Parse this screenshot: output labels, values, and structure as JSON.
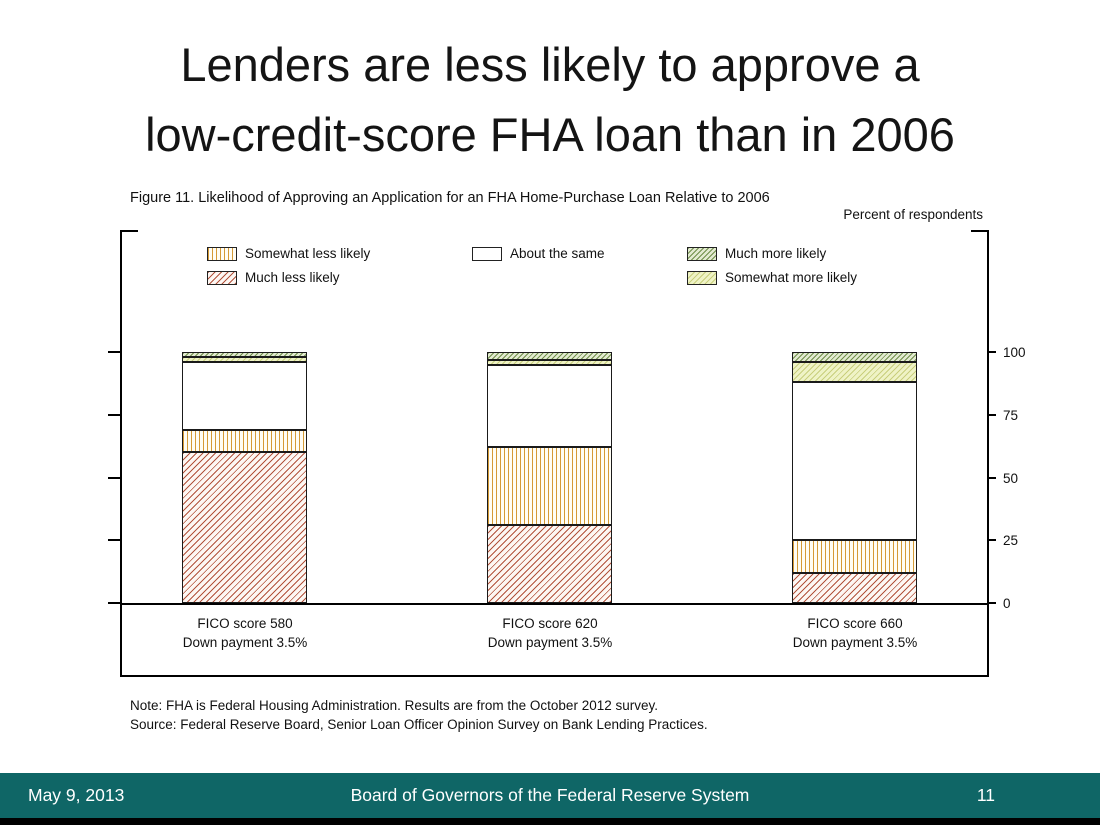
{
  "slide": {
    "title_line1": "Lenders are less likely to approve a",
    "title_line2": "low-credit-score FHA loan than in 2006"
  },
  "figure": {
    "title": "Figure 11. Likelihood of Approving an Application for an FHA Home-Purchase Loan Relative to 2006",
    "unit_label": "Percent of respondents"
  },
  "chart_data": {
    "type": "bar",
    "stacked": true,
    "title": "Figure 11. Likelihood of Approving an Application for an FHA Home-Purchase Loan Relative to 2006",
    "ylabel": "Percent of respondents",
    "ylim": [
      0,
      100
    ],
    "yticks": [
      0,
      25,
      50,
      75,
      100
    ],
    "grid": false,
    "legend_position": "top-inside",
    "categories": [
      {
        "line1": "FICO score 580",
        "line2": "Down payment 3.5%"
      },
      {
        "line1": "FICO score 620",
        "line2": "Down payment 3.5%"
      },
      {
        "line1": "FICO score 660",
        "line2": "Down payment 3.5%"
      }
    ],
    "series": [
      {
        "key": "much_less",
        "name": "Much less likely",
        "pattern": "red-diagonal-hatch",
        "color": "#b2533c",
        "values": [
          60,
          31,
          12
        ]
      },
      {
        "key": "somewhat_less",
        "name": "Somewhat less likely",
        "pattern": "orange-vertical-hatch",
        "color": "#d59a35",
        "values": [
          9,
          31,
          13
        ]
      },
      {
        "key": "about_same",
        "name": "About the same",
        "pattern": "plain-white",
        "color": "#ffffff",
        "values": [
          27,
          33,
          63
        ]
      },
      {
        "key": "somewhat_more",
        "name": "Somewhat more likely",
        "pattern": "yellowgreen-hatch",
        "color": "#c9cf7d",
        "values": [
          2,
          2,
          8
        ]
      },
      {
        "key": "much_more",
        "name": "Much more likely",
        "pattern": "green-diagonal-hatch",
        "color": "#70904a",
        "values": [
          2,
          3,
          4
        ]
      }
    ],
    "legend_order": [
      "somewhat_less",
      "about_same",
      "much_more",
      "much_less",
      "somewhat_more"
    ]
  },
  "notes": {
    "note": "Note: FHA is Federal Housing Administration. Results are from the October 2012 survey.",
    "source": "Source: Federal Reserve Board, Senior Loan Officer Opinion Survey on Bank Lending Practices."
  },
  "footer": {
    "date": "May 9, 2013",
    "org": "Board of Governors of the Federal Reserve System",
    "page": "11",
    "bar_color": "#0f6666"
  }
}
